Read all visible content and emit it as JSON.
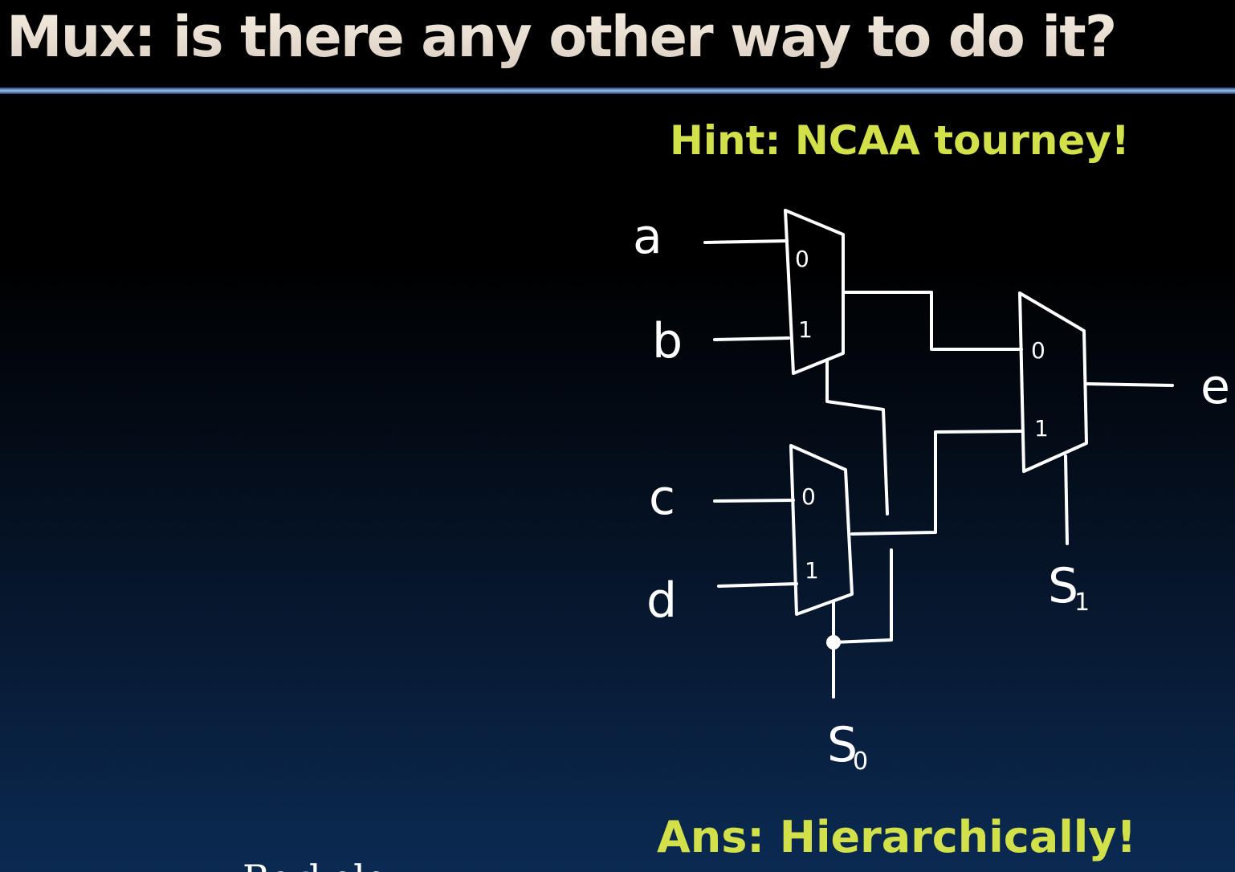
{
  "slide": {
    "title": "Mux: is there any other way to do it?",
    "hint": "Hint: NCAA tourney!",
    "answer": "Ans: Hierarchically!",
    "footer_partial": "Berkeley"
  },
  "colors": {
    "title_text": "#f1e7d9",
    "highlight_text": "#d2e04a",
    "drawing_ink": "#ffffff",
    "background_top": "#000000",
    "background_bottom": "#0b2a52"
  },
  "diagram": {
    "inputs": {
      "a_top": "a",
      "b": "b",
      "c": "c",
      "d": "d"
    },
    "output": "e",
    "select": {
      "s0_base": "S",
      "s0_sub": "0",
      "s1_base": "S",
      "s1_sub": "1"
    },
    "pins": {
      "zero": "0",
      "one": "1"
    }
  }
}
